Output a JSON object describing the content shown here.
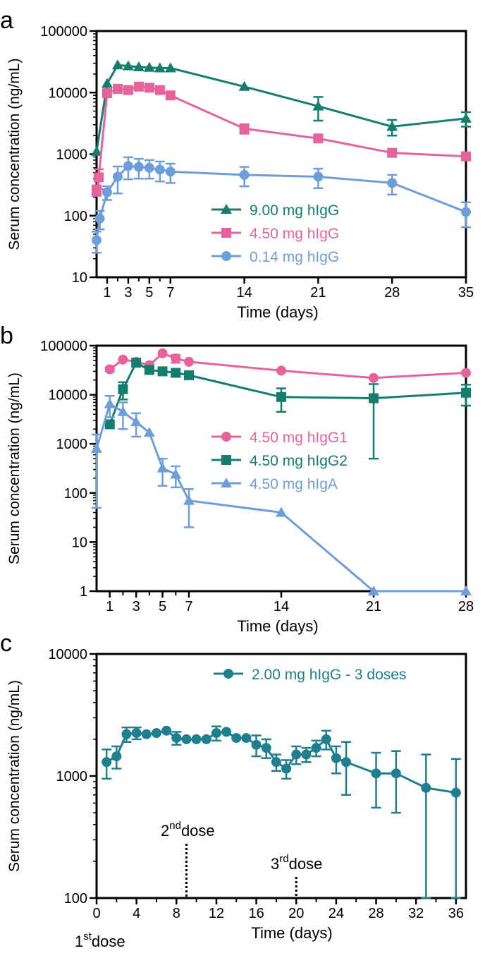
{
  "chart_data": [
    {
      "panel_label": "a",
      "type": "line",
      "yscale": "log",
      "ylabel": "Serum concentration (ng/mL)",
      "xlabel": "Time (days)",
      "xlim": [
        0,
        35
      ],
      "ylim": [
        10,
        100000
      ],
      "xticks": [
        1,
        3,
        5,
        7,
        14,
        21,
        28,
        35
      ],
      "yticks": [
        10,
        100,
        1000,
        10000,
        100000
      ],
      "legend_position": "center-right",
      "series": [
        {
          "name": "9.00 mg hIgG",
          "color": "#137e6d",
          "marker": "triangle",
          "x": [
            0,
            1,
            2,
            3,
            4,
            5,
            6,
            7,
            14,
            21,
            28,
            35
          ],
          "y": [
            1100,
            14000,
            28000,
            27000,
            26000,
            25500,
            25000,
            25000,
            12500,
            6000,
            2800,
            3800
          ],
          "err": [
            0,
            0,
            0,
            0,
            0,
            0,
            0,
            0,
            0,
            2500,
            800,
            1000
          ]
        },
        {
          "name": "4.50 mg hIgG",
          "color": "#e5639a",
          "marker": "square",
          "x": [
            0,
            0.2,
            1,
            2,
            3,
            4,
            5,
            6,
            7,
            14,
            21,
            28,
            35
          ],
          "y": [
            260,
            420,
            9800,
            11500,
            11000,
            12500,
            12000,
            11000,
            9000,
            2600,
            1800,
            1050,
            920
          ],
          "err": [
            50,
            150,
            0,
            0,
            0,
            0,
            0,
            0,
            0,
            450,
            150,
            0,
            0
          ]
        },
        {
          "name": "0.14 mg hIgG",
          "color": "#6d9ed9",
          "marker": "circle",
          "x": [
            0,
            0.3,
            1,
            2,
            3,
            4,
            5,
            6,
            7,
            14,
            21,
            28,
            35
          ],
          "y": [
            40,
            90,
            240,
            430,
            640,
            620,
            600,
            560,
            520,
            460,
            430,
            340,
            115
          ],
          "err": [
            15,
            30,
            60,
            200,
            250,
            220,
            200,
            200,
            180,
            160,
            150,
            120,
            50
          ]
        }
      ]
    },
    {
      "panel_label": "b",
      "type": "line",
      "yscale": "log",
      "ylabel": "Serum concentration (ng/mL)",
      "xlabel": "Time (days)",
      "xlim": [
        0,
        28
      ],
      "ylim": [
        1,
        100000
      ],
      "xticks": [
        1,
        3,
        5,
        7,
        14,
        21,
        28
      ],
      "yticks": [
        1,
        10,
        100,
        1000,
        10000,
        100000
      ],
      "legend_position": "center-right",
      "series": [
        {
          "name": "4.50 mg hIgG1",
          "color": "#e5639a",
          "marker": "circle",
          "x": [
            1,
            2,
            3,
            4,
            5,
            6,
            7,
            14,
            21,
            28
          ],
          "y": [
            33000,
            52000,
            47000,
            40000,
            70000,
            55000,
            47000,
            31000,
            22000,
            28000
          ],
          "err": [
            3000,
            0,
            0,
            0,
            0,
            10000,
            0,
            0,
            0,
            0
          ]
        },
        {
          "name": "4.50 mg hIgG2",
          "color": "#137e6d",
          "marker": "square",
          "x": [
            1,
            2,
            3,
            4,
            5,
            6,
            7,
            14,
            21,
            28
          ],
          "y": [
            2500,
            13000,
            45000,
            32000,
            30000,
            28000,
            25000,
            9000,
            8500,
            11000
          ],
          "err": [
            0,
            5000,
            0,
            0,
            0,
            0,
            0,
            4500,
            8000,
            5000
          ]
        },
        {
          "name": "4.50 mg hIgA",
          "color": "#6d9ed9",
          "marker": "triangle",
          "x": [
            0,
            1,
            2,
            3,
            4,
            5,
            6,
            7,
            14,
            21,
            28
          ],
          "y": [
            800,
            6500,
            4500,
            2800,
            1700,
            320,
            240,
            70,
            40,
            1,
            1
          ],
          "err": [
            750,
            3000,
            2500,
            1400,
            0,
            180,
            110,
            50,
            0,
            0,
            0
          ]
        }
      ]
    },
    {
      "panel_label": "c",
      "type": "line",
      "yscale": "log",
      "ylabel": "Serum concentration (ng/mL)",
      "xlabel": "Time (days)",
      "xlim": [
        0,
        37
      ],
      "ylim": [
        100,
        10000
      ],
      "xticks": [
        0,
        4,
        8,
        12,
        16,
        20,
        24,
        28,
        32,
        36
      ],
      "yticks": [
        100,
        1000,
        10000
      ],
      "legend_position": "top-right",
      "series": [
        {
          "name": "2.00 mg hIgG - 3 doses",
          "color": "#1f7f8f",
          "marker": "circle",
          "x": [
            1,
            2,
            3,
            4,
            5,
            6,
            7,
            8,
            9,
            10,
            11,
            12,
            13,
            14,
            15,
            16,
            17,
            18,
            19,
            20,
            21,
            22,
            23,
            24,
            25,
            28,
            30,
            33,
            36
          ],
          "y": [
            1300,
            1450,
            2200,
            2250,
            2200,
            2250,
            2350,
            2050,
            2000,
            2000,
            2000,
            2250,
            2300,
            2050,
            2050,
            1800,
            1700,
            1300,
            1150,
            1500,
            1500,
            1700,
            2000,
            1400,
            1300,
            1050,
            1050,
            800,
            730
          ],
          "err": [
            350,
            300,
            300,
            250,
            0,
            0,
            0,
            250,
            0,
            0,
            0,
            300,
            0,
            0,
            0,
            350,
            300,
            200,
            200,
            250,
            200,
            250,
            350,
            350,
            600,
            500,
            550,
            700,
            650
          ]
        }
      ],
      "annotations": [
        {
          "x": 9,
          "label": "2nd dose",
          "base": "2",
          "sup": "nd",
          "rest": "dose"
        },
        {
          "x": 20,
          "label": "3rd dose",
          "base": "3",
          "sup": "rd",
          "rest": "dose"
        },
        {
          "x": 0,
          "label": "1st dose",
          "base": "1",
          "sup": "st",
          "rest": "dose"
        }
      ]
    }
  ]
}
